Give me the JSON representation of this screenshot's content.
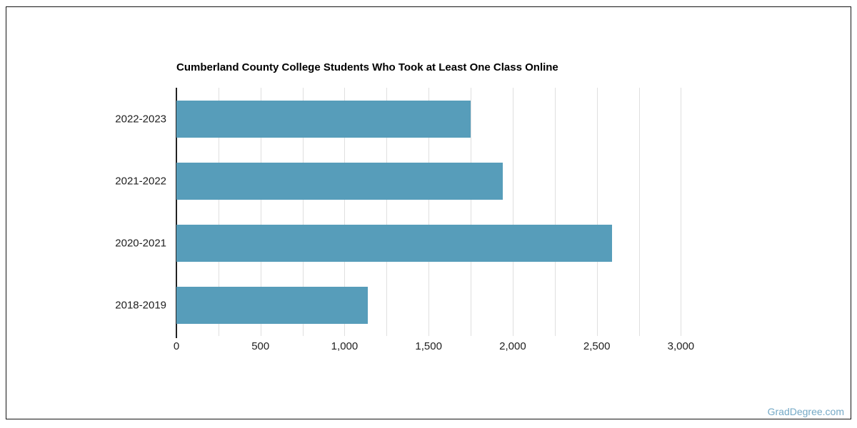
{
  "frame": {
    "border_color": "#141414"
  },
  "watermark": {
    "text": "GradDegree.com",
    "color": "#74A9C6"
  },
  "chart_data": {
    "type": "bar",
    "orientation": "horizontal",
    "title": "Cumberland County College Students Who Took at Least One Class Online",
    "categories": [
      "2022-2023",
      "2021-2022",
      "2020-2021",
      "2018-2019"
    ],
    "values": [
      1750,
      1940,
      2590,
      1140
    ],
    "xlabel": "",
    "ylabel": "",
    "xlim": [
      0,
      3000
    ],
    "x_ticks": [
      {
        "value": 0,
        "label": "0"
      },
      {
        "value": 500,
        "label": "500"
      },
      {
        "value": 1000,
        "label": "1,000"
      },
      {
        "value": 1500,
        "label": "1,500"
      },
      {
        "value": 2000,
        "label": "2,000"
      },
      {
        "value": 2500,
        "label": "2,500"
      },
      {
        "value": 3000,
        "label": "3,000"
      }
    ],
    "gridline_step": 250,
    "grid": true,
    "legend": false,
    "bar_color": "#579DBA",
    "gridline_color": "#DFDFDF",
    "axis_line_color": "#222222",
    "text_color": "#212121"
  }
}
